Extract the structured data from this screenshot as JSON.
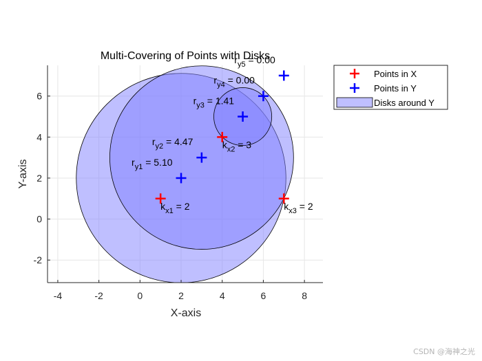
{
  "chart_data": {
    "type": "scatter",
    "title": "Multi-Covering of Points with Disks",
    "xlabel": "X-axis",
    "ylabel": "Y-axis",
    "xlim": [
      -4.5,
      8.9
    ],
    "ylim": [
      -3.1,
      7.5
    ],
    "xticks": [
      -4,
      -2,
      0,
      2,
      4,
      6,
      8
    ],
    "yticks": [
      -2,
      0,
      2,
      4,
      6
    ],
    "grid": true,
    "legend_position": "outside-top-right",
    "legend": [
      "Points in X",
      "Points in Y",
      "Disks around Y"
    ],
    "colors": {
      "x_points": "#ff0000",
      "y_points": "#0000ff",
      "disk_fill": "#8080ff",
      "disk_edge": "#000000",
      "grid": "#e6e6e6",
      "axis": "#262626"
    },
    "x_points": [
      {
        "x": 1,
        "y": 1,
        "label_main": "k",
        "label_sub": "x1",
        "label_rest": " = 2"
      },
      {
        "x": 4,
        "y": 4,
        "label_main": "k",
        "label_sub": "x2",
        "label_rest": " = 3"
      },
      {
        "x": 7,
        "y": 1,
        "label_main": "k",
        "label_sub": "x3",
        "label_rest": " = 2"
      }
    ],
    "y_points": [
      {
        "x": 2,
        "y": 2,
        "r": 5.1,
        "label_main": "r",
        "label_sub": "y1",
        "label_rest": " = 5.10"
      },
      {
        "x": 3,
        "y": 3,
        "r": 4.47,
        "label_main": "r",
        "label_sub": "y2",
        "label_rest": " = 4.47"
      },
      {
        "x": 5,
        "y": 5,
        "r": 1.41,
        "label_main": "r",
        "label_sub": "y3",
        "label_rest": " = 1.41"
      },
      {
        "x": 6,
        "y": 6,
        "r": 0.0,
        "label_main": "r",
        "label_sub": "y4",
        "label_rest": " = 0.00"
      },
      {
        "x": 7,
        "y": 7,
        "r": 0.0,
        "label_main": "r",
        "label_sub": "y5",
        "label_rest": " = 0.00"
      }
    ]
  },
  "watermark": "CSDN @海神之光"
}
